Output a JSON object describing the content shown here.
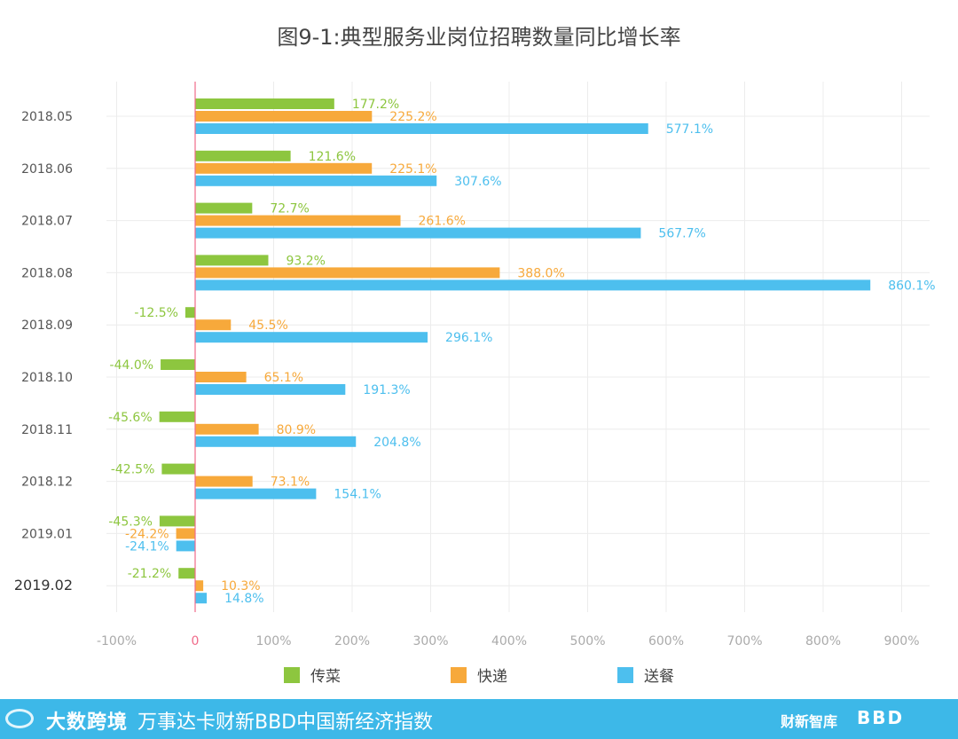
{
  "chart_data": {
    "type": "bar",
    "orientation": "horizontal",
    "title": "图9-1:典型服务业岗位招聘数量同比增长率",
    "categories": [
      "2018.05",
      "2018.06",
      "2018.07",
      "2018.08",
      "2018.09",
      "2018.10",
      "2018.11",
      "2018.12",
      "2019.01",
      "2019.02"
    ],
    "series": [
      {
        "name": "传菜",
        "color": "#8dc63f",
        "values": [
          177.2,
          121.6,
          72.7,
          93.2,
          -12.5,
          -44.0,
          -45.6,
          -42.5,
          -45.3,
          -21.2
        ],
        "labels": [
          "177.2%",
          "121.6%",
          "72.7%",
          "93.2%",
          "-12.5%",
          "-44.0%",
          "-45.6%",
          "-42.5%",
          "-45.3%",
          "-21.2%"
        ]
      },
      {
        "name": "快递",
        "color": "#f7a93b",
        "values": [
          225.2,
          225.1,
          261.6,
          388.0,
          45.5,
          65.1,
          80.9,
          73.1,
          -24.2,
          10.3
        ],
        "labels": [
          "225.2%",
          "225.1%",
          "261.6%",
          "388.0%",
          "45.5%",
          "65.1%",
          "80.9%",
          "73.1%",
          "-24.2%",
          "10.3%"
        ]
      },
      {
        "name": "送餐",
        "color": "#4dbfee",
        "values": [
          577.1,
          307.6,
          567.7,
          860.1,
          296.1,
          191.3,
          204.8,
          154.1,
          -24.1,
          14.8
        ],
        "labels": [
          "577.1%",
          "307.6%",
          "567.7%",
          "860.1%",
          "296.1%",
          "191.3%",
          "204.8%",
          "154.1%",
          "-24.1%",
          "14.8%"
        ]
      }
    ],
    "xlim": [
      -100,
      900
    ],
    "xticks": [
      -100,
      0,
      100,
      200,
      300,
      400,
      500,
      600,
      700,
      800,
      900
    ],
    "xtick_labels": [
      "-100%",
      "0",
      "100%",
      "200%",
      "300%",
      "400%",
      "500%",
      "600%",
      "700%",
      "800%",
      "900%"
    ],
    "zero_line_color": "#f06b8a",
    "grid": true,
    "legend_position": "bottom"
  },
  "footer": {
    "source_brand": "大数跨境",
    "title": "万事达卡财新BBD中国新经济指数",
    "logo_caixin": "财新智库",
    "logo_bbd": "BBD"
  }
}
